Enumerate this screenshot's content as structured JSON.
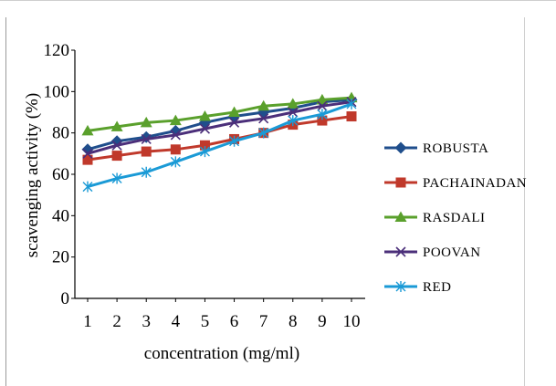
{
  "chart_data": {
    "type": "line",
    "title": "",
    "xlabel": "concentration (mg/ml)",
    "ylabel": "scavenging activity (%)",
    "categories": [
      "1",
      "2",
      "3",
      "4",
      "5",
      "6",
      "7",
      "8",
      "9",
      "10"
    ],
    "ylim": [
      0,
      120
    ],
    "yticks": [
      "0",
      "20",
      "40",
      "60",
      "80",
      "100",
      "120"
    ],
    "grid": false,
    "legend_position": "right",
    "series": [
      {
        "name": "ROBUSTA",
        "marker": "diamond",
        "color": "#1f4e8c",
        "values": [
          72,
          76,
          78,
          81,
          85,
          88,
          90,
          92,
          95,
          96
        ]
      },
      {
        "name": "PACHAINADAN",
        "marker": "square",
        "color": "#c0392b",
        "values": [
          67,
          69,
          71,
          72,
          74,
          77,
          80,
          84,
          86,
          88
        ]
      },
      {
        "name": "RASDALI",
        "marker": "triangle",
        "color": "#5aa02c",
        "values": [
          81,
          83,
          85,
          86,
          88,
          90,
          93,
          94,
          96,
          97
        ]
      },
      {
        "name": "POOVAN",
        "marker": "x",
        "color": "#4b2f7a",
        "values": [
          70,
          74,
          77,
          79,
          82,
          85,
          87,
          90,
          93,
          95
        ]
      },
      {
        "name": "RED",
        "marker": "asterisk",
        "color": "#1a9ad6",
        "values": [
          54,
          58,
          61,
          66,
          71,
          76,
          80,
          86,
          89,
          94
        ]
      }
    ]
  }
}
